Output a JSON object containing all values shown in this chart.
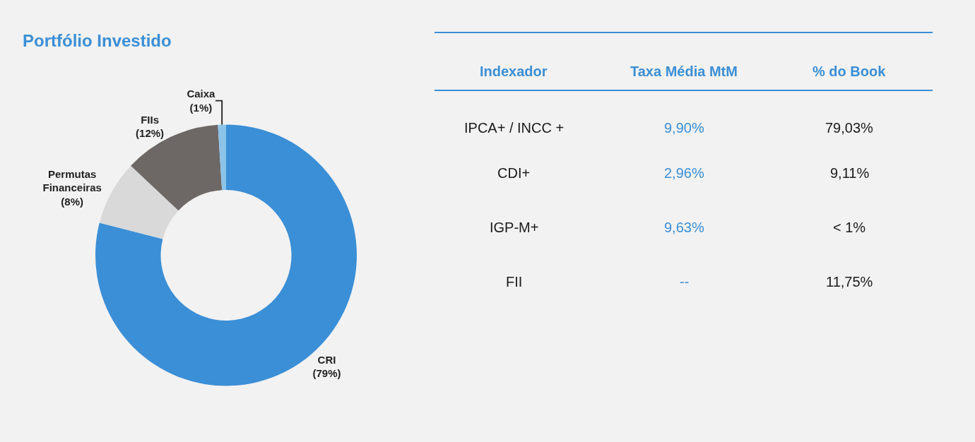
{
  "chart_data": [
    {
      "type": "donut",
      "title": "Portfólio Investido",
      "categories": [
        "CRI",
        "Permutas Financeiras",
        "FIIs",
        "Caixa"
      ],
      "values": [
        79,
        8,
        12,
        1
      ],
      "value_labels": [
        "(79%)",
        "(8%)",
        "(12%)",
        "(1%)"
      ],
      "colors": [
        "#3b8fd6",
        "#d9d9d9",
        "#6d6866",
        "#8cc3e8"
      ]
    },
    {
      "type": "other",
      "categories": [
        "Indexador",
        "Taxa Média MtM",
        "% do Book"
      ],
      "cell_labels": [
        [
          "IPCA+ / INCC +",
          "9,90%",
          "79,03%"
        ],
        [
          "CDI+",
          "2,96%",
          "9,11%"
        ],
        [
          "IGP-M+",
          "9,63%",
          "< 1%"
        ],
        [
          "FII",
          "--",
          "11,75%"
        ]
      ]
    }
  ]
}
